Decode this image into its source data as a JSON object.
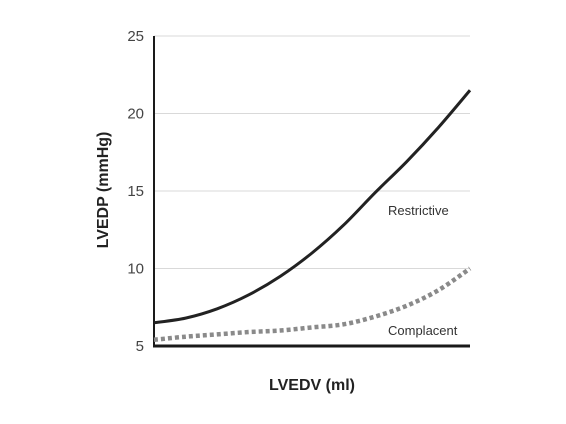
{
  "chart_data": {
    "type": "line",
    "title": "",
    "xlabel": "LVEDV (ml)",
    "ylabel": "LVEDP (mmHg)",
    "ylim": [
      5,
      25
    ],
    "yticks": [
      "5",
      "10",
      "15",
      "20",
      "25"
    ],
    "x_tick_labels": false,
    "grid": "horizontal",
    "legend": "none",
    "series": [
      {
        "name": "Restrictive",
        "style": "solid",
        "color": "#222222",
        "x": [
          0,
          0.1,
          0.2,
          0.3,
          0.4,
          0.5,
          0.6,
          0.7,
          0.8,
          0.9,
          1.0
        ],
        "y": [
          6.5,
          6.8,
          7.4,
          8.3,
          9.5,
          11.0,
          12.8,
          14.9,
          16.9,
          19.1,
          21.5
        ]
      },
      {
        "name": "Complacent",
        "style": "dotted",
        "color": "#8a8a8a",
        "x": [
          0,
          0.1,
          0.2,
          0.3,
          0.4,
          0.5,
          0.6,
          0.7,
          0.8,
          0.9,
          1.0
        ],
        "y": [
          5.4,
          5.6,
          5.75,
          5.9,
          6.0,
          6.2,
          6.4,
          6.9,
          7.6,
          8.6,
          10.0
        ]
      }
    ]
  }
}
